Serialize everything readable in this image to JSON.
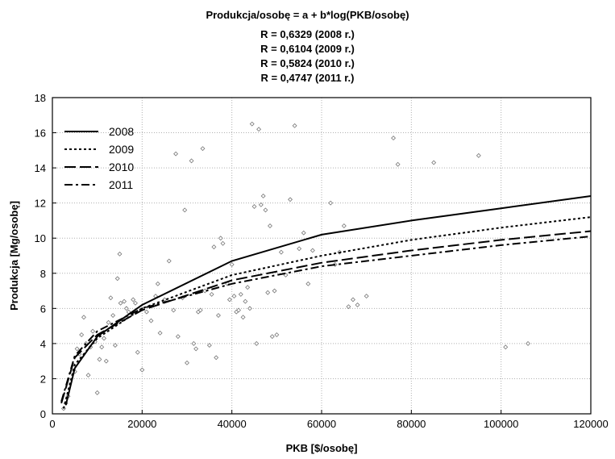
{
  "chart_data": {
    "type": "scatter",
    "title": "Produkcja/osobę = a + b*log(PKB/osobę)",
    "subtitles": [
      "R = 0,6329 (2008 r.)",
      "R = 0,6104 (2009 r.)",
      "R = 0,5824 (2010 r.)",
      "R = 0,4747 (2011 r.)"
    ],
    "xlabel": "PKB [$/osobę]",
    "ylabel": "Produkcja [Mg/osobę]",
    "xlim": [
      0,
      120000
    ],
    "ylim": [
      0,
      18
    ],
    "xticks": [
      0,
      20000,
      40000,
      60000,
      80000,
      100000,
      120000
    ],
    "yticks": [
      0,
      2,
      4,
      6,
      8,
      10,
      12,
      14,
      16,
      18
    ],
    "grid": true,
    "legend_position": "top-left",
    "series": [
      {
        "name": "2008",
        "style": "solid",
        "x": [
          3000,
          5000,
          10000,
          20000,
          40000,
          60000,
          80000,
          100000,
          120000
        ],
        "y": [
          0.5,
          2.6,
          4.4,
          6.2,
          8.7,
          10.2,
          11.0,
          11.7,
          12.4
        ]
      },
      {
        "name": "2009",
        "style": "dotted",
        "x": [
          2500,
          5000,
          10000,
          20000,
          40000,
          60000,
          80000,
          100000,
          120000
        ],
        "y": [
          0.3,
          2.8,
          4.3,
          6.0,
          7.9,
          9.0,
          9.9,
          10.6,
          11.2
        ]
      },
      {
        "name": "2010",
        "style": "longdash",
        "x": [
          2000,
          5000,
          10000,
          20000,
          40000,
          60000,
          80000,
          100000,
          120000
        ],
        "y": [
          0.6,
          3.2,
          4.5,
          5.9,
          7.6,
          8.6,
          9.3,
          9.9,
          10.4
        ]
      },
      {
        "name": "2011",
        "style": "dashdot",
        "x": [
          2000,
          5000,
          10000,
          20000,
          40000,
          60000,
          80000,
          100000,
          120000
        ],
        "y": [
          0.7,
          3.3,
          4.7,
          6.0,
          7.4,
          8.4,
          9.0,
          9.6,
          10.1
        ]
      }
    ],
    "points": [
      [
        2500,
        0.3
      ],
      [
        3000,
        0.6
      ],
      [
        3500,
        1.0
      ],
      [
        5000,
        2.4
      ],
      [
        5500,
        3.7
      ],
      [
        6000,
        3.4
      ],
      [
        6500,
        4.5
      ],
      [
        7000,
        5.5
      ],
      [
        7500,
        4.0
      ],
      [
        8000,
        2.2
      ],
      [
        8500,
        3.8
      ],
      [
        9000,
        4.7
      ],
      [
        9500,
        4.1
      ],
      [
        10000,
        1.2
      ],
      [
        10500,
        3.1
      ],
      [
        11000,
        3.8
      ],
      [
        11500,
        4.3
      ],
      [
        12000,
        3.0
      ],
      [
        12500,
        5.2
      ],
      [
        13000,
        6.6
      ],
      [
        13500,
        5.6
      ],
      [
        14000,
        3.9
      ],
      [
        14500,
        7.7
      ],
      [
        15000,
        9.1
      ],
      [
        15200,
        6.3
      ],
      [
        16000,
        6.4
      ],
      [
        16500,
        6.0
      ],
      [
        17000,
        5.8
      ],
      [
        18000,
        6.5
      ],
      [
        18500,
        6.3
      ],
      [
        19000,
        3.5
      ],
      [
        20000,
        2.5
      ],
      [
        21000,
        5.8
      ],
      [
        22000,
        5.3
      ],
      [
        23000,
        6.7
      ],
      [
        23500,
        7.4
      ],
      [
        24000,
        4.6
      ],
      [
        25000,
        6.5
      ],
      [
        26000,
        8.7
      ],
      [
        27000,
        5.9
      ],
      [
        27500,
        14.8
      ],
      [
        28000,
        4.4
      ],
      [
        29000,
        6.6
      ],
      [
        29500,
        11.6
      ],
      [
        30000,
        2.9
      ],
      [
        31000,
        14.4
      ],
      [
        31500,
        4.0
      ],
      [
        32000,
        3.7
      ],
      [
        32500,
        5.8
      ],
      [
        33000,
        5.9
      ],
      [
        33500,
        15.1
      ],
      [
        34000,
        7.0
      ],
      [
        35000,
        3.9
      ],
      [
        35500,
        6.8
      ],
      [
        36000,
        9.5
      ],
      [
        36500,
        3.2
      ],
      [
        37000,
        5.6
      ],
      [
        37500,
        10.0
      ],
      [
        38000,
        9.7
      ],
      [
        39000,
        7.4
      ],
      [
        39500,
        6.5
      ],
      [
        40000,
        8.5
      ],
      [
        40500,
        6.7
      ],
      [
        41000,
        5.8
      ],
      [
        41500,
        5.9
      ],
      [
        42000,
        6.8
      ],
      [
        42500,
        5.5
      ],
      [
        43000,
        6.4
      ],
      [
        43500,
        7.2
      ],
      [
        44000,
        6.0
      ],
      [
        44500,
        16.5
      ],
      [
        45000,
        11.8
      ],
      [
        45500,
        4.0
      ],
      [
        46000,
        16.2
      ],
      [
        46500,
        11.9
      ],
      [
        47000,
        12.4
      ],
      [
        47500,
        11.6
      ],
      [
        48000,
        6.9
      ],
      [
        48500,
        10.7
      ],
      [
        49000,
        4.4
      ],
      [
        49500,
        7.0
      ],
      [
        50000,
        4.5
      ],
      [
        51000,
        9.2
      ],
      [
        52000,
        7.9
      ],
      [
        53000,
        12.2
      ],
      [
        54000,
        16.4
      ],
      [
        55000,
        9.4
      ],
      [
        56000,
        10.3
      ],
      [
        57000,
        7.4
      ],
      [
        58000,
        9.3
      ],
      [
        62000,
        12.0
      ],
      [
        63000,
        8.5
      ],
      [
        64000,
        9.2
      ],
      [
        65000,
        10.7
      ],
      [
        66000,
        6.1
      ],
      [
        67000,
        6.5
      ],
      [
        68000,
        6.2
      ],
      [
        70000,
        6.7
      ],
      [
        76000,
        15.7
      ],
      [
        77000,
        14.2
      ],
      [
        85000,
        14.3
      ],
      [
        95000,
        14.7
      ],
      [
        101000,
        3.8
      ],
      [
        106000,
        4.0
      ]
    ]
  }
}
